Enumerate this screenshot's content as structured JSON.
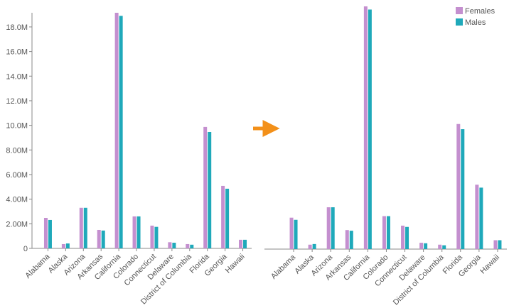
{
  "chart_data": [
    {
      "type": "bar",
      "categories": [
        "Alabama",
        "Alaska",
        "Arizona",
        "Arkansas",
        "California",
        "Colorado",
        "Connecticut",
        "Delaware",
        "District of Columbia",
        "Florida",
        "Georgia",
        "Hawaii"
      ],
      "series": [
        {
          "name": "Females",
          "color": "#c48fcf",
          "values": [
            2480000,
            350000,
            3300000,
            1500000,
            19150000,
            2600000,
            1850000,
            500000,
            350000,
            9870000,
            5080000,
            700000
          ]
        },
        {
          "name": "Males",
          "color": "#1fa9ba",
          "values": [
            2310000,
            400000,
            3300000,
            1450000,
            18900000,
            2600000,
            1750000,
            460000,
            300000,
            9460000,
            4850000,
            700000
          ]
        }
      ],
      "ylim": [
        0,
        19150000
      ],
      "yticks": [
        0,
        {
          "value": 2000000,
          "label": "2.00M"
        },
        {
          "value": 4000000,
          "label": "4.00M"
        },
        {
          "value": 6000000,
          "label": "6.00M"
        },
        {
          "value": 8000000,
          "label": "8.00M"
        },
        {
          "value": 10000000,
          "label": "10.0M"
        },
        {
          "value": 12000000,
          "label": "12.0M"
        },
        {
          "value": 14000000,
          "label": "14.0M"
        },
        {
          "value": 16000000,
          "label": "16.0M"
        },
        {
          "value": 18000000,
          "label": "18.0M"
        }
      ],
      "legend": false
    },
    {
      "type": "bar",
      "categories": [
        "Alabama",
        "Alaska",
        "Arizona",
        "Arkansas",
        "California",
        "Colorado",
        "Connecticut",
        "Delaware",
        "District of Columbia",
        "Florida",
        "Georgia",
        "Hawaii"
      ],
      "series": [
        {
          "name": "Females",
          "color": "#c48fcf",
          "values": [
            2480000,
            350000,
            3300000,
            1500000,
            19150000,
            2600000,
            1850000,
            500000,
            350000,
            9870000,
            5080000,
            700000
          ]
        },
        {
          "name": "Males",
          "color": "#1fa9ba",
          "values": [
            2310000,
            400000,
            3300000,
            1450000,
            18900000,
            2600000,
            1750000,
            460000,
            300000,
            9460000,
            4850000,
            700000
          ]
        }
      ],
      "ylim": [
        0,
        19150000
      ],
      "legend": "top-right"
    }
  ]
}
